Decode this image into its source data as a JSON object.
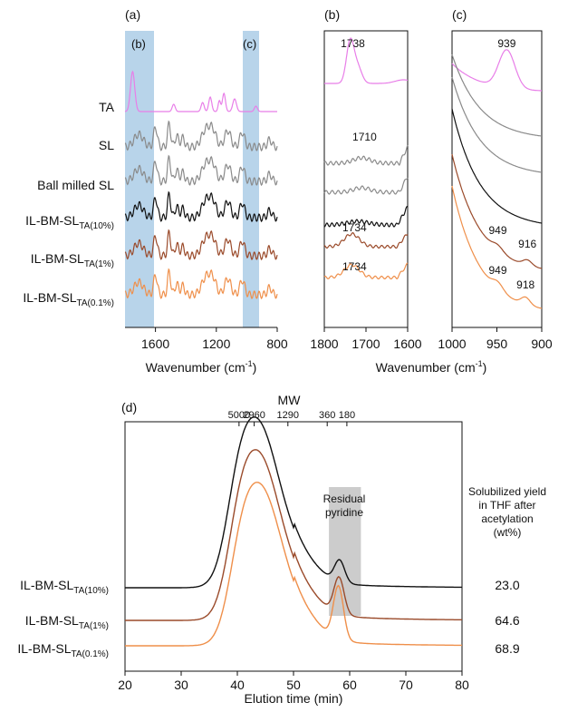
{
  "colors": {
    "TA": "#e87ee8",
    "SL": "#8a8a8a",
    "Ball milled SL": "#8a8a8a",
    "IL10": "#111111",
    "IL1": "#9a4a2a",
    "IL01": "#ef8f4a",
    "highlight": "#b8d4ea",
    "residual_box": "#cccccc"
  },
  "chart_data": [
    {
      "type": "line",
      "panel": "(a)",
      "xlabel": "Wavenumber (cm",
      "xlabel_sup": "-1",
      "xlabel_close": ")",
      "xlim": [
        1800,
        800
      ],
      "xticks": [
        1600,
        1200,
        800
      ],
      "highlight_labels": [
        "(b)",
        "(c)"
      ],
      "highlight_ranges": [
        [
          1800,
          1620
        ],
        [
          970,
          900
        ]
      ],
      "series": [
        {
          "key": "TA",
          "name": "TA",
          "label_base": "TA",
          "label_sub": ""
        },
        {
          "key": "SL",
          "name": "SL",
          "label_base": "SL",
          "label_sub": ""
        },
        {
          "key": "BM",
          "name": "Ball milled SL",
          "label_base": "Ball milled SL",
          "label_sub": ""
        },
        {
          "key": "IL10",
          "name": "IL-BM-SL TA(10%)",
          "label_base": "IL-BM-SL",
          "label_sub": "TA(10%)"
        },
        {
          "key": "IL1",
          "name": "IL-BM-SL TA(1%)",
          "label_base": "IL-BM-SL",
          "label_sub": "TA(1%)"
        },
        {
          "key": "IL01",
          "name": "IL-BM-SL TA(0.1%)",
          "label_base": "IL-BM-SL",
          "label_sub": "TA(0.1%)"
        }
      ]
    },
    {
      "type": "line",
      "panel": "(b)",
      "xlabel": "Wavenumber (cm",
      "xlabel_sup": "-1",
      "xlabel_close": ")",
      "xlim": [
        1800,
        1600
      ],
      "xticks": [
        1800,
        1700,
        1600
      ],
      "annotations": [
        {
          "text": "1738",
          "x": 1738,
          "series": "TA"
        },
        {
          "text": "1710",
          "x": 1710,
          "series": "SL"
        },
        {
          "text": "1734",
          "x": 1734,
          "series": "IL1"
        },
        {
          "text": "1734",
          "x": 1734,
          "series": "IL01"
        }
      ]
    },
    {
      "type": "line",
      "panel": "(c)",
      "xlim": [
        1000,
        900
      ],
      "xticks": [
        1000,
        950,
        900
      ],
      "annotations": [
        {
          "text": "939",
          "x": 939,
          "series": "TA"
        },
        {
          "text": "949",
          "x": 949,
          "series": "IL1"
        },
        {
          "text": "916",
          "x": 916,
          "series": "IL1"
        },
        {
          "text": "949",
          "x": 949,
          "series": "IL01"
        },
        {
          "text": "918",
          "x": 918,
          "series": "IL01"
        }
      ]
    },
    {
      "type": "line",
      "panel": "(d)",
      "xlabel": "Elution time (min)",
      "xlim": [
        20,
        80
      ],
      "xticks": [
        20,
        30,
        40,
        50,
        60,
        70,
        80
      ],
      "mw_label": "MW",
      "mw_ticks": [
        {
          "label": "5000",
          "x": 40.3
        },
        {
          "label": "2960",
          "x": 43.0
        },
        {
          "label": "1290",
          "x": 49.0
        },
        {
          "label": "360",
          "x": 56.0
        },
        {
          "label": "180",
          "x": 59.5
        }
      ],
      "residual_label": [
        "Residual",
        "pyridine"
      ],
      "residual_range": [
        56.3,
        62.0
      ],
      "yield_header": [
        "Solubilized yield",
        "in THF after",
        "acetylation",
        "(wt%)"
      ],
      "series": [
        {
          "key": "IL10",
          "name": "IL-BM-SL TA(10%)",
          "label_base": "IL-BM-SL",
          "label_sub": "TA(10%)",
          "peak_x": 43.5,
          "yield": "23.0"
        },
        {
          "key": "IL1",
          "name": "IL-BM-SL TA(1%)",
          "label_base": "IL-BM-SL",
          "label_sub": "TA(1%)",
          "peak_x": 43.7,
          "yield": "64.6"
        },
        {
          "key": "IL01",
          "name": "IL-BM-SL TA(0.1%)",
          "label_base": "IL-BM-SL",
          "label_sub": "TA(0.1%)",
          "peak_x": 44.0,
          "yield": "68.9"
        }
      ]
    }
  ]
}
